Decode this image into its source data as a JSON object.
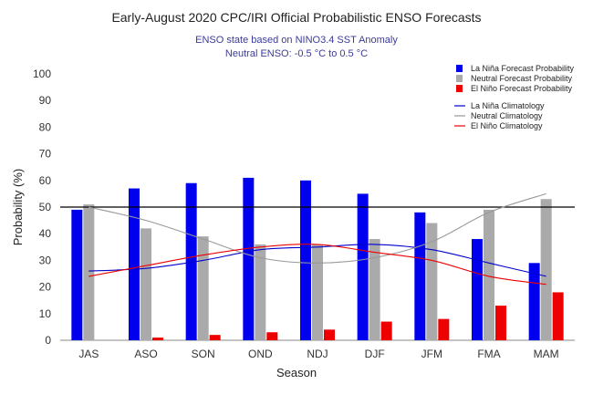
{
  "chart_data": {
    "type": "bar",
    "title": "Early-August 2020 CPC/IRI Official Probabilistic ENSO Forecasts",
    "subtitle_lines": [
      "ENSO state based on NINO3.4 SST Anomaly",
      "Neutral ENSO: -0.5 °C to 0.5 °C"
    ],
    "xlabel": "Season",
    "ylabel": "Probability (%)",
    "ylim": [
      0,
      100
    ],
    "yticks": [
      "0",
      "10",
      "20",
      "30",
      "40",
      "50",
      "60",
      "70",
      "80",
      "90",
      "100"
    ],
    "reference_line": 50,
    "grid": false,
    "legend_position": "top-right",
    "categories": [
      "JAS",
      "ASO",
      "SON",
      "OND",
      "NDJ",
      "DJF",
      "JFM",
      "FMA",
      "MAM"
    ],
    "series": [
      {
        "name": "La Niña Forecast Probability",
        "kind": "bar",
        "color": "#0000ee",
        "values": [
          49,
          57,
          59,
          61,
          60,
          55,
          48,
          38,
          29
        ]
      },
      {
        "name": "Neutral Forecast Probability",
        "kind": "bar",
        "color": "#aaaaaa",
        "values": [
          51,
          42,
          39,
          36,
          36,
          38,
          44,
          49,
          53
        ]
      },
      {
        "name": "El Niño Forecast Probability",
        "kind": "bar",
        "color": "#ee0000",
        "values": [
          0,
          1,
          2,
          3,
          4,
          7,
          8,
          13,
          18
        ]
      },
      {
        "name": "La Niña Climatology",
        "kind": "line",
        "color": "#0000cc",
        "values": [
          26,
          27,
          30,
          34,
          35,
          36,
          34,
          29,
          24
        ]
      },
      {
        "name": "Neutral Climatology",
        "kind": "line",
        "color": "#999999",
        "values": [
          50,
          45,
          38,
          31,
          29,
          31,
          37,
          48,
          55
        ]
      },
      {
        "name": "El Niño Climatology",
        "kind": "line",
        "color": "#ee0000",
        "values": [
          24,
          28,
          32,
          35,
          36,
          33,
          30,
          24,
          21
        ]
      }
    ]
  }
}
